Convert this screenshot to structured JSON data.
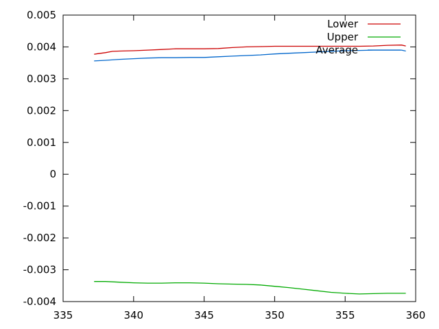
{
  "chart_data": {
    "type": "line",
    "title": "",
    "xlabel": "",
    "ylabel": "",
    "xlim": [
      335,
      360
    ],
    "ylim": [
      -0.004,
      0.005
    ],
    "x_ticks": [
      335,
      340,
      345,
      350,
      355,
      360
    ],
    "x_tick_labels": [
      "335",
      "340",
      "345",
      "350",
      "355",
      "360"
    ],
    "y_ticks": [
      -0.004,
      -0.003,
      -0.002,
      -0.001,
      0,
      0.001,
      0.002,
      0.003,
      0.004,
      0.005
    ],
    "y_tick_labels": [
      "-0.004",
      "-0.003",
      "-0.002",
      "-0.001",
      "0",
      "0.001",
      "0.002",
      "0.003",
      "0.004",
      "0.005"
    ],
    "grid": false,
    "legend_position": "top-right",
    "series": [
      {
        "name": "Lower",
        "color": "#cc0000",
        "x": [
          337.2,
          337.5,
          338.0,
          338.5,
          339.0,
          340.0,
          341.0,
          342.0,
          343.0,
          344.0,
          345.0,
          346.0,
          347.0,
          348.0,
          349.0,
          350.0,
          351.0,
          352.0,
          353.0,
          354.0,
          355.0,
          356.0,
          357.0,
          358.0,
          359.0,
          359.3
        ],
        "values": [
          0.00377,
          0.00379,
          0.00382,
          0.00386,
          0.00387,
          0.00388,
          0.0039,
          0.00392,
          0.00394,
          0.00394,
          0.00394,
          0.00395,
          0.00398,
          0.004,
          0.00401,
          0.00402,
          0.00402,
          0.00402,
          0.00402,
          0.00402,
          0.00402,
          0.00402,
          0.00403,
          0.00405,
          0.00406,
          0.00403
        ]
      },
      {
        "name": "Upper",
        "color": "#00aa00",
        "x": [
          337.2,
          338.0,
          339.0,
          340.0,
          341.0,
          342.0,
          343.0,
          344.0,
          345.0,
          346.0,
          347.0,
          348.0,
          349.0,
          350.0,
          351.0,
          352.0,
          353.0,
          354.0,
          355.0,
          356.0,
          357.0,
          358.0,
          359.0,
          359.3
        ],
        "values": [
          -0.00337,
          -0.00337,
          -0.00339,
          -0.00341,
          -0.00342,
          -0.00342,
          -0.00341,
          -0.00341,
          -0.00342,
          -0.00344,
          -0.00345,
          -0.00346,
          -0.00348,
          -0.00352,
          -0.00356,
          -0.00361,
          -0.00366,
          -0.00371,
          -0.00374,
          -0.00376,
          -0.00375,
          -0.00374,
          -0.00374,
          -0.00374
        ]
      },
      {
        "name": "Average",
        "color": "#0066cc",
        "x": [
          337.2,
          338.0,
          339.0,
          340.0,
          341.0,
          342.0,
          343.0,
          344.0,
          345.0,
          346.0,
          347.0,
          348.0,
          349.0,
          350.0,
          351.0,
          352.0,
          353.0,
          354.0,
          355.0,
          356.0,
          357.0,
          358.0,
          359.0,
          359.3
        ],
        "values": [
          0.00356,
          0.00358,
          0.00361,
          0.00363,
          0.00365,
          0.00366,
          0.00366,
          0.00367,
          0.00367,
          0.00369,
          0.00371,
          0.00373,
          0.00375,
          0.00378,
          0.0038,
          0.00382,
          0.00384,
          0.00386,
          0.00388,
          0.00389,
          0.0039,
          0.0039,
          0.0039,
          0.00387
        ]
      }
    ]
  }
}
